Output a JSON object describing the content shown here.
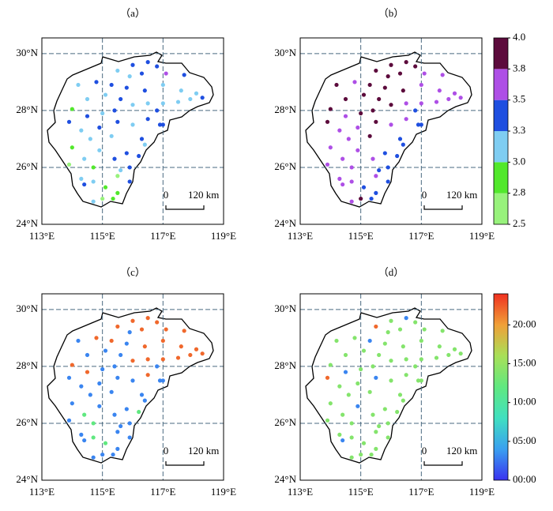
{
  "chart_data": [
    {
      "type": "scatter",
      "title": "（a）",
      "x": [
        116.0,
        116.5,
        115.5,
        115.9,
        116.3,
        117.1,
        117.7,
        116.8,
        114.2,
        114.8,
        115.3,
        115.8,
        116.4,
        117.0,
        117.6,
        118.1,
        118.3,
        114.5,
        115.1,
        115.6,
        116.0,
        116.5,
        117.0,
        117.5,
        117.9,
        114.0,
        114.5,
        115.0,
        115.4,
        116.8,
        113.9,
        114.3,
        114.9,
        115.5,
        116.0,
        116.5,
        116.9,
        117.0,
        114.6,
        115.3,
        116.3,
        114.0,
        114.4,
        114.9,
        115.4,
        115.8,
        116.2,
        116.4,
        113.9,
        114.7,
        115.6,
        115.9,
        114.3,
        114.7,
        115.1,
        115.5,
        115.9,
        114.4,
        115.0,
        115.5,
        114.7,
        115.35
      ],
      "y": [
        29.6,
        29.7,
        29.4,
        29.2,
        29.3,
        29.3,
        29.25,
        29.55,
        28.9,
        29.0,
        28.9,
        28.8,
        28.7,
        28.9,
        28.7,
        28.6,
        28.45,
        28.4,
        28.55,
        28.4,
        28.2,
        28.25,
        28.25,
        28.3,
        28.4,
        28.05,
        27.8,
        27.9,
        28.0,
        28.0,
        27.6,
        27.3,
        27.4,
        27.6,
        27.5,
        27.7,
        27.5,
        27.5,
        27.0,
        27.1,
        27.0,
        26.7,
        26.3,
        26.6,
        26.3,
        26.5,
        26.4,
        26.8,
        26.1,
        26.0,
        25.9,
        26.0,
        25.6,
        25.5,
        25.3,
        25.7,
        25.5,
        25.4,
        24.9,
        25.1,
        24.8,
        24.9
      ],
      "values": [
        3.4,
        3.4,
        3.1,
        3.1,
        3.4,
        3.6,
        3.4,
        3.4,
        3.1,
        3.4,
        3.4,
        3.4,
        3.4,
        3.1,
        3.1,
        3.1,
        3.4,
        3.1,
        3.1,
        3.4,
        3.1,
        3.1,
        3.1,
        3.1,
        3.1,
        2.9,
        3.4,
        3.1,
        3.4,
        3.4,
        3.4,
        3.1,
        3.4,
        3.4,
        3.1,
        3.4,
        3.4,
        3.4,
        3.1,
        3.1,
        3.4,
        2.9,
        3.1,
        3.1,
        3.4,
        3.4,
        3.4,
        3.1,
        2.7,
        2.9,
        3.1,
        3.4,
        3.1,
        3.1,
        2.9,
        2.7,
        3.4,
        3.4,
        2.7,
        2.9,
        3.1,
        2.9
      ],
      "xlim": [
        113,
        119
      ],
      "ylim": [
        24,
        30.55
      ],
      "xticks": [
        {
          "value": 113,
          "label": "113°E"
        },
        {
          "value": 115,
          "label": "115°E"
        },
        {
          "value": 117,
          "label": "117°E"
        },
        {
          "value": 119,
          "label": "119°E"
        }
      ],
      "yticks": [
        {
          "value": 24,
          "label": "24°N"
        },
        {
          "value": 26,
          "label": "26°N"
        },
        {
          "value": 28,
          "label": "28°N"
        },
        {
          "value": 30,
          "label": "30°N"
        }
      ],
      "grid": true,
      "scale_bar": {
        "start": "0",
        "end": "120 km"
      },
      "colorscale": {
        "kind": "discrete",
        "ticks": [
          2.5,
          2.8,
          {
            "value": 3,
            "label": "3.0"
          },
          3.3,
          3.5,
          3.8,
          {
            "value": 4,
            "label": "4.0"
          }
        ],
        "colors": [
          "#98f27c",
          "#52e82c",
          "#7fcdf2",
          "#1f4fe0",
          "#ae4fe6",
          "#5c0b3c"
        ]
      },
      "colorbar": false
    },
    {
      "type": "scatter",
      "title": "（b）",
      "x": [
        116.0,
        116.5,
        115.5,
        115.9,
        116.3,
        117.1,
        117.7,
        116.8,
        114.2,
        114.8,
        115.3,
        115.8,
        116.4,
        117.0,
        117.6,
        118.1,
        118.3,
        114.5,
        115.1,
        115.6,
        116.0,
        116.5,
        117.0,
        117.5,
        117.9,
        114.0,
        114.5,
        115.0,
        115.4,
        116.8,
        113.9,
        114.3,
        114.9,
        115.5,
        116.0,
        116.5,
        116.9,
        117.0,
        114.6,
        115.3,
        116.3,
        114.0,
        114.4,
        114.9,
        115.4,
        115.8,
        116.2,
        116.4,
        113.9,
        114.7,
        115.6,
        115.9,
        114.3,
        114.7,
        115.1,
        115.5,
        115.9,
        114.4,
        115.0,
        115.5,
        114.7,
        115.35
      ],
      "y": [
        29.6,
        29.7,
        29.4,
        29.2,
        29.3,
        29.3,
        29.25,
        29.55,
        28.9,
        29.0,
        28.9,
        28.8,
        28.7,
        28.9,
        28.7,
        28.6,
        28.45,
        28.4,
        28.55,
        28.4,
        28.2,
        28.25,
        28.25,
        28.3,
        28.4,
        28.05,
        27.8,
        27.9,
        28.0,
        28.0,
        27.6,
        27.3,
        27.4,
        27.6,
        27.5,
        27.7,
        27.5,
        27.5,
        27.0,
        27.1,
        27.0,
        26.7,
        26.3,
        26.6,
        26.3,
        26.5,
        26.4,
        26.8,
        26.1,
        26.0,
        25.9,
        26.0,
        25.6,
        25.5,
        25.3,
        25.7,
        25.5,
        25.4,
        24.9,
        25.1,
        24.8,
        24.9
      ],
      "values": [
        3.9,
        3.9,
        3.9,
        3.9,
        3.9,
        3.6,
        3.6,
        3.9,
        3.9,
        3.6,
        3.9,
        3.9,
        3.9,
        3.6,
        3.6,
        3.6,
        3.6,
        3.9,
        3.9,
        3.9,
        3.9,
        3.6,
        3.6,
        3.6,
        3.6,
        3.9,
        3.6,
        3.9,
        3.9,
        3.4,
        3.9,
        3.6,
        3.6,
        3.9,
        3.6,
        3.6,
        3.4,
        3.4,
        3.6,
        3.9,
        3.4,
        3.6,
        3.6,
        3.6,
        3.6,
        3.4,
        3.4,
        3.4,
        3.6,
        3.6,
        3.4,
        3.4,
        3.6,
        3.6,
        3.4,
        3.6,
        3.4,
        3.6,
        3.9,
        3.4,
        3.6,
        3.4
      ],
      "xlim": [
        113,
        119
      ],
      "ylim": [
        24,
        30.55
      ],
      "xticks": [
        {
          "value": 113,
          "label": "113°E"
        },
        {
          "value": 115,
          "label": "115°E"
        },
        {
          "value": 117,
          "label": "117°E"
        },
        {
          "value": 119,
          "label": "119°E"
        }
      ],
      "yticks": [
        {
          "value": 24,
          "label": "24°N"
        },
        {
          "value": 26,
          "label": "26°N"
        },
        {
          "value": 28,
          "label": "28°N"
        },
        {
          "value": 30,
          "label": "30°N"
        }
      ],
      "grid": true,
      "scale_bar": {
        "start": "0",
        "end": "120 km"
      },
      "colorscale": {
        "kind": "discrete",
        "ticks": [
          2.5,
          2.8,
          {
            "value": 3,
            "label": "3.0"
          },
          3.3,
          3.5,
          3.8,
          {
            "value": 4,
            "label": "4.0"
          }
        ],
        "colors": [
          "#98f27c",
          "#52e82c",
          "#7fcdf2",
          "#1f4fe0",
          "#ae4fe6",
          "#5c0b3c"
        ]
      },
      "colorbar": true
    },
    {
      "type": "scatter",
      "title": "（c）",
      "x": [
        116.0,
        116.5,
        115.5,
        115.9,
        116.3,
        117.1,
        117.7,
        116.8,
        114.2,
        114.8,
        115.3,
        115.8,
        116.4,
        117.0,
        117.6,
        118.1,
        118.3,
        114.5,
        115.1,
        115.6,
        116.0,
        116.5,
        117.0,
        117.5,
        117.9,
        114.0,
        114.5,
        115.0,
        115.4,
        116.8,
        113.9,
        114.3,
        114.9,
        115.5,
        116.0,
        116.5,
        116.9,
        117.0,
        114.6,
        115.3,
        116.3,
        114.0,
        114.4,
        114.9,
        115.4,
        115.8,
        116.2,
        116.4,
        113.9,
        114.7,
        115.6,
        115.9,
        114.3,
        114.7,
        115.1,
        115.5,
        115.9,
        114.4,
        115.0,
        115.5,
        114.7,
        115.35
      ],
      "y": [
        29.6,
        29.7,
        29.4,
        29.2,
        29.3,
        29.3,
        29.25,
        29.55,
        28.9,
        29.0,
        28.9,
        28.8,
        28.7,
        28.9,
        28.7,
        28.6,
        28.45,
        28.4,
        28.55,
        28.4,
        28.2,
        28.25,
        28.25,
        28.3,
        28.4,
        28.05,
        27.8,
        27.9,
        28.0,
        28.0,
        27.6,
        27.3,
        27.4,
        27.6,
        27.5,
        27.7,
        27.5,
        27.5,
        27.0,
        27.1,
        27.0,
        26.7,
        26.3,
        26.6,
        26.3,
        26.5,
        26.4,
        26.8,
        26.1,
        26.0,
        25.9,
        26.0,
        25.6,
        25.5,
        25.3,
        25.7,
        25.5,
        25.4,
        24.9,
        25.1,
        24.8,
        24.9
      ],
      "values": [
        22,
        22,
        22,
        3,
        22,
        22,
        22,
        22,
        3,
        22,
        22,
        3,
        22,
        22,
        22,
        22,
        22,
        3,
        3,
        3,
        22,
        22,
        22,
        22,
        22,
        22,
        22,
        3,
        3,
        3,
        3,
        3,
        3,
        3,
        3,
        22,
        3,
        3,
        3,
        3,
        3,
        3,
        12,
        3,
        3,
        3,
        12,
        3,
        3,
        12,
        3,
        3,
        3,
        12,
        12,
        3,
        3,
        3,
        3,
        3,
        3,
        3
      ],
      "xlim": [
        113,
        119
      ],
      "ylim": [
        24,
        30.55
      ],
      "xticks": [
        {
          "value": 113,
          "label": "113°E"
        },
        {
          "value": 115,
          "label": "115°E"
        },
        {
          "value": 117,
          "label": "117°E"
        },
        {
          "value": 119,
          "label": "119°E"
        }
      ],
      "yticks": [
        {
          "value": 24,
          "label": "24°N"
        },
        {
          "value": 26,
          "label": "26°N"
        },
        {
          "value": 28,
          "label": "28°N"
        },
        {
          "value": 30,
          "label": "30°N"
        }
      ],
      "grid": true,
      "scale_bar": {
        "start": "0",
        "end": "120 km"
      },
      "colorscale": {
        "kind": "continuous",
        "lim": [
          0,
          24
        ],
        "ticks": [
          {
            "value": 0,
            "label": "00:00"
          },
          {
            "value": 5,
            "label": "05:00"
          },
          {
            "value": 10,
            "label": "10:00"
          },
          {
            "value": 15,
            "label": "15:00"
          },
          {
            "value": 20,
            "label": "20:00"
          }
        ],
        "colors": [
          "#3a32f0",
          "#3aa0f0",
          "#40e0c0",
          "#60e880",
          "#a8e058",
          "#f0a038",
          "#f03020"
        ]
      },
      "colorbar": false
    },
    {
      "type": "scatter",
      "title": "（d）",
      "x": [
        116.0,
        116.5,
        115.5,
        115.9,
        116.3,
        117.1,
        117.7,
        116.8,
        114.2,
        114.8,
        115.3,
        115.8,
        116.4,
        117.0,
        117.6,
        118.1,
        118.3,
        114.5,
        115.1,
        115.6,
        116.0,
        116.5,
        117.0,
        117.5,
        117.9,
        114.0,
        114.5,
        115.0,
        115.4,
        116.8,
        113.9,
        114.3,
        114.9,
        115.5,
        116.0,
        116.5,
        116.9,
        117.0,
        114.6,
        115.3,
        116.3,
        114.0,
        114.4,
        114.9,
        115.4,
        115.8,
        116.2,
        116.4,
        113.9,
        114.7,
        115.6,
        115.9,
        114.3,
        114.7,
        115.1,
        115.5,
        115.9,
        114.4,
        115.0,
        115.5,
        114.7,
        115.35
      ],
      "y": [
        29.6,
        29.7,
        29.4,
        29.2,
        29.3,
        29.3,
        29.25,
        29.55,
        28.9,
        29.0,
        28.9,
        28.8,
        28.7,
        28.9,
        28.7,
        28.6,
        28.45,
        28.4,
        28.55,
        28.4,
        28.2,
        28.25,
        28.25,
        28.3,
        28.4,
        28.05,
        27.8,
        27.9,
        28.0,
        28.0,
        27.6,
        27.3,
        27.4,
        27.6,
        27.5,
        27.7,
        27.5,
        27.5,
        27.0,
        27.1,
        27.0,
        26.7,
        26.3,
        26.6,
        26.3,
        26.5,
        26.4,
        26.8,
        26.1,
        26.0,
        25.9,
        26.0,
        25.6,
        25.5,
        25.3,
        25.7,
        25.5,
        25.4,
        24.9,
        25.1,
        24.8,
        24.9
      ],
      "values": [
        14,
        3,
        22,
        14,
        14,
        14,
        14,
        14,
        14,
        14,
        3,
        14,
        14,
        14,
        14,
        14,
        14,
        14,
        14,
        14,
        14,
        14,
        14,
        14,
        14,
        14,
        3,
        14,
        14,
        14,
        22,
        14,
        14,
        3,
        14,
        14,
        14,
        14,
        14,
        14,
        14,
        14,
        14,
        3,
        14,
        14,
        14,
        14,
        14,
        14,
        14,
        14,
        14,
        14,
        14,
        14,
        14,
        3,
        14,
        14,
        14,
        14
      ],
      "xlim": [
        113,
        119
      ],
      "ylim": [
        24,
        30.55
      ],
      "xticks": [
        {
          "value": 113,
          "label": "113°E"
        },
        {
          "value": 115,
          "label": "115°E"
        },
        {
          "value": 117,
          "label": "117°E"
        },
        {
          "value": 119,
          "label": "119°E"
        }
      ],
      "yticks": [
        {
          "value": 24,
          "label": "24°N"
        },
        {
          "value": 26,
          "label": "26°N"
        },
        {
          "value": 28,
          "label": "28°N"
        },
        {
          "value": 30,
          "label": "30°N"
        }
      ],
      "grid": true,
      "scale_bar": {
        "start": "0",
        "end": "120 km"
      },
      "colorscale": {
        "kind": "continuous",
        "lim": [
          0,
          24
        ],
        "ticks": [
          {
            "value": 0,
            "label": "00:00"
          },
          {
            "value": 5,
            "label": "05:00"
          },
          {
            "value": 10,
            "label": "10:00"
          },
          {
            "value": 15,
            "label": "15:00"
          },
          {
            "value": 20,
            "label": "20:00"
          }
        ],
        "colors": [
          "#3a32f0",
          "#3aa0f0",
          "#40e0c0",
          "#60e880",
          "#a8e058",
          "#f0a038",
          "#f03020"
        ]
      },
      "colorbar": true
    }
  ]
}
